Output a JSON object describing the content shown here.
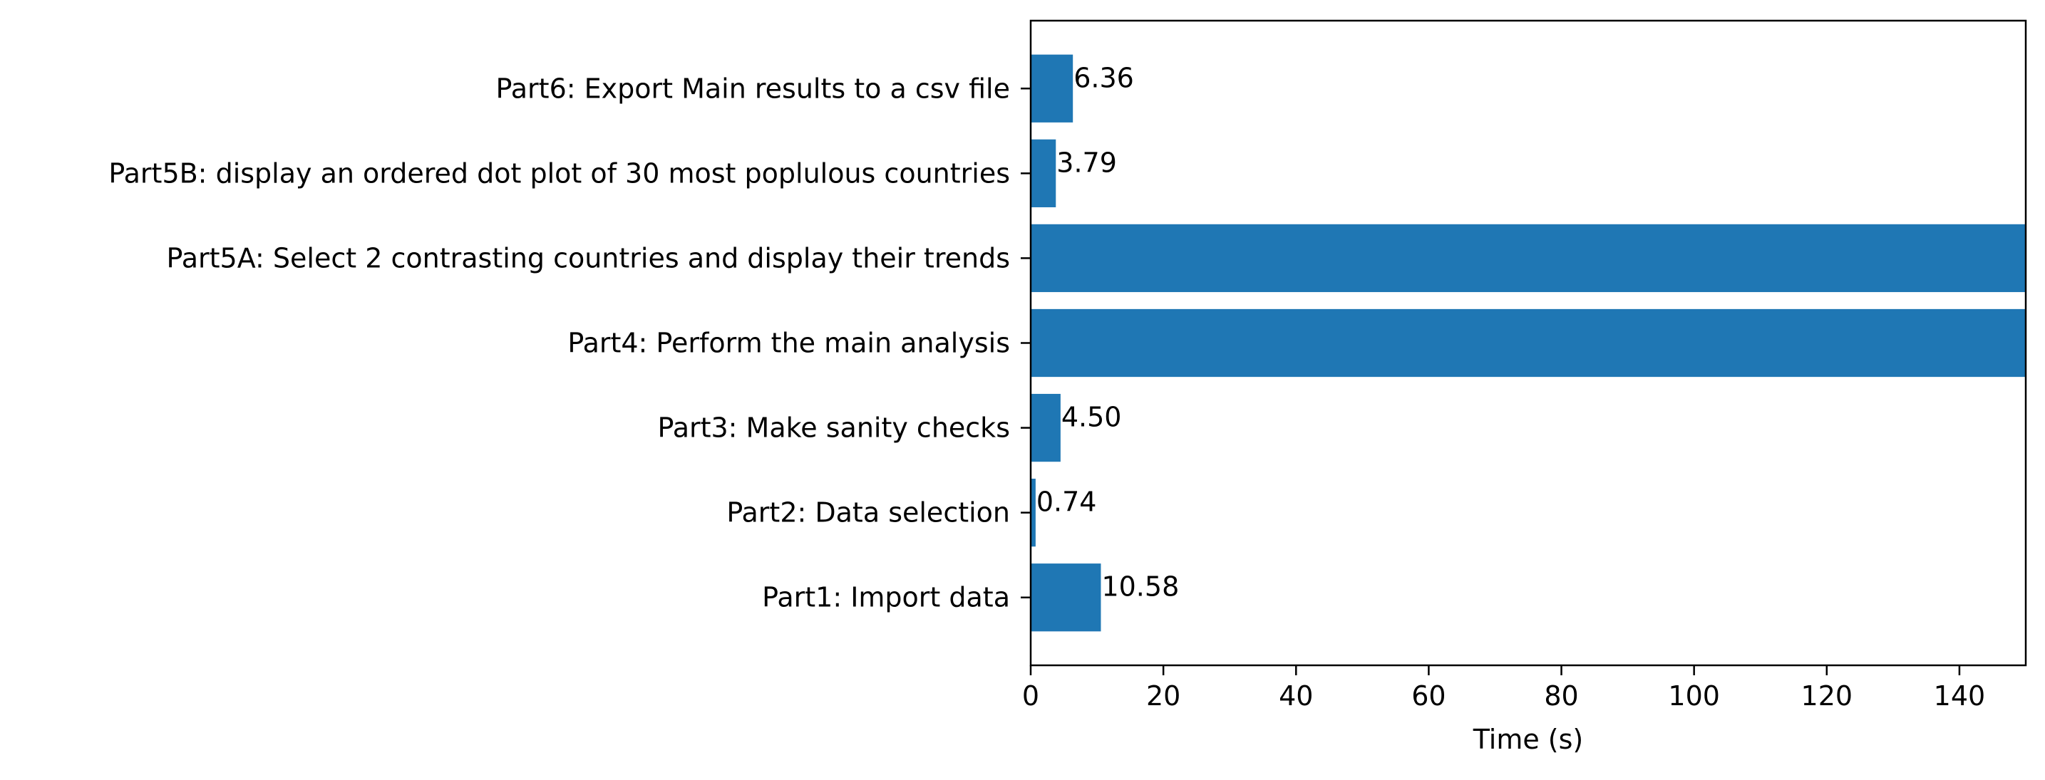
{
  "chart_data": {
    "type": "bar",
    "orientation": "horizontal",
    "categories": [
      "Part1: Import data",
      "Part2: Data selection",
      "Part3: Make sanity checks",
      "Part4: Perform the main analysis",
      "Part5A: Select 2 contrasting countries and display their trends",
      "Part5B: display an ordered dot plot of 30 most poplulous countries",
      "Part6: Export Main results to a csv file"
    ],
    "values": [
      10.58,
      0.74,
      4.5,
      150,
      150,
      3.79,
      6.36
    ],
    "data_labels": [
      "10.58",
      "0.74",
      "4.50",
      null,
      null,
      "3.79",
      "6.36"
    ],
    "title": "",
    "xlabel": "Time (s)",
    "ylabel": "",
    "xlim": [
      0,
      150
    ],
    "xticks": [
      0,
      20,
      40,
      60,
      80,
      100,
      120,
      140
    ],
    "grid": false,
    "legend": "none",
    "bar_color": "#1f77b4"
  }
}
